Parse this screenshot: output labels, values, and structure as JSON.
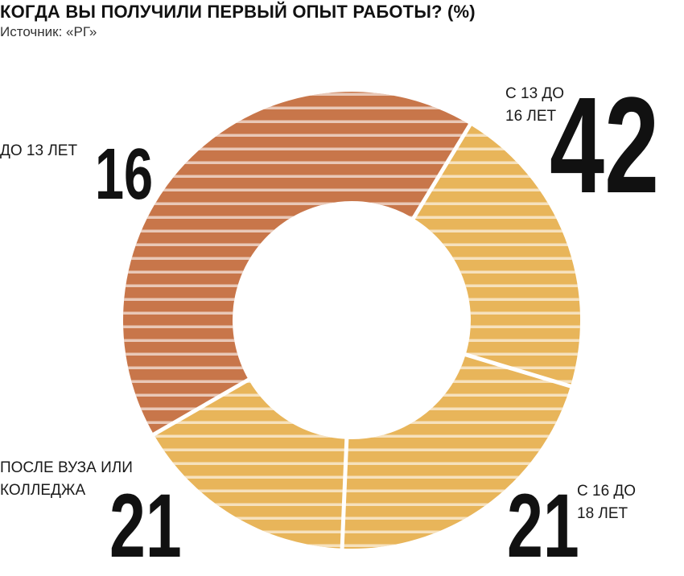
{
  "title": "КОГДА ВЫ ПОЛУЧИЛИ ПЕРВЫЙ ОПЫТ РАБОТЫ? (%)",
  "source": "Источник: «РГ»",
  "chart_data": {
    "type": "pie",
    "donut": true,
    "unit": "%",
    "title": "КОГДА ВЫ ПОЛУЧИЛИ ПЕРВЫЙ ОПЫТ РАБОТЫ? (%)",
    "slices": [
      {
        "label_lines": [
          "С 13 ДО",
          "16 ЛЕТ"
        ],
        "value": 42,
        "color": "#c8764a"
      },
      {
        "label_lines": [
          "С 16 ДО",
          "18 ЛЕТ"
        ],
        "value": 21,
        "color": "#e8b55a"
      },
      {
        "label_lines": [
          "ПОСЛЕ ВУЗА ИЛИ",
          "КОЛЛЕДЖА"
        ],
        "value": 21,
        "color": "#e8b55a"
      },
      {
        "label_lines": [
          "ДО 13 ЛЕТ"
        ],
        "value": 16,
        "color": "#e8b55a"
      }
    ]
  }
}
